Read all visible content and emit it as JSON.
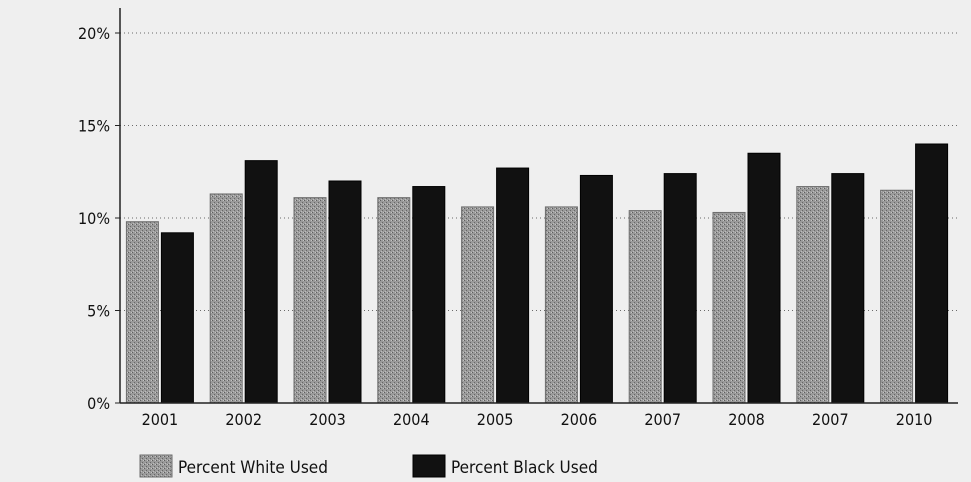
{
  "chart_data": {
    "type": "bar",
    "categories": [
      "2001",
      "2002",
      "2003",
      "2004",
      "2005",
      "2006",
      "2007",
      "2008",
      "2007",
      "2010"
    ],
    "series": [
      {
        "name": "Percent White Used",
        "color": "#8a8a8a",
        "values": [
          9.8,
          11.3,
          11.1,
          11.1,
          10.6,
          10.6,
          10.4,
          10.3,
          11.7,
          11.5
        ]
      },
      {
        "name": "Percent Black Used",
        "color": "#111111",
        "values": [
          9.2,
          13.1,
          12.0,
          11.7,
          12.7,
          12.3,
          12.4,
          13.5,
          12.4,
          14.0
        ]
      }
    ],
    "y_ticks": [
      "0%",
      "5%",
      "10%",
      "15%",
      "20%"
    ],
    "ylim": [
      0,
      20
    ],
    "grid": true,
    "legend_position": "bottom-left"
  }
}
